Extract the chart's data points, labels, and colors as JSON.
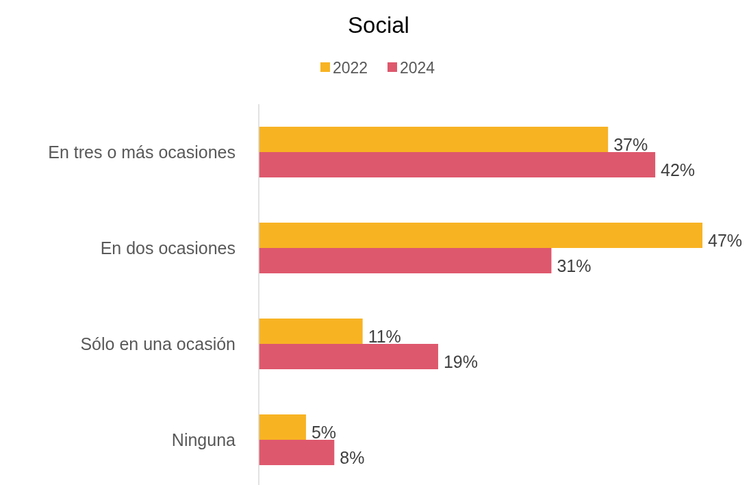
{
  "chart_data": {
    "type": "bar",
    "orientation": "horizontal",
    "title": "Social",
    "categories": [
      "En tres o más ocasiones",
      "En dos ocasiones",
      "Sólo en una ocasión",
      "Ninguna"
    ],
    "series": [
      {
        "name": "2022",
        "color": "#f8b323",
        "values": [
          37,
          47,
          11,
          5
        ],
        "value_labels": [
          "37%",
          "47%",
          "11%",
          "5%"
        ]
      },
      {
        "name": "2024",
        "color": "#de586d",
        "values": [
          42,
          31,
          19,
          8
        ],
        "value_labels": [
          "42%",
          "31%",
          "19%",
          "8%"
        ]
      }
    ],
    "legend": "top"
  }
}
